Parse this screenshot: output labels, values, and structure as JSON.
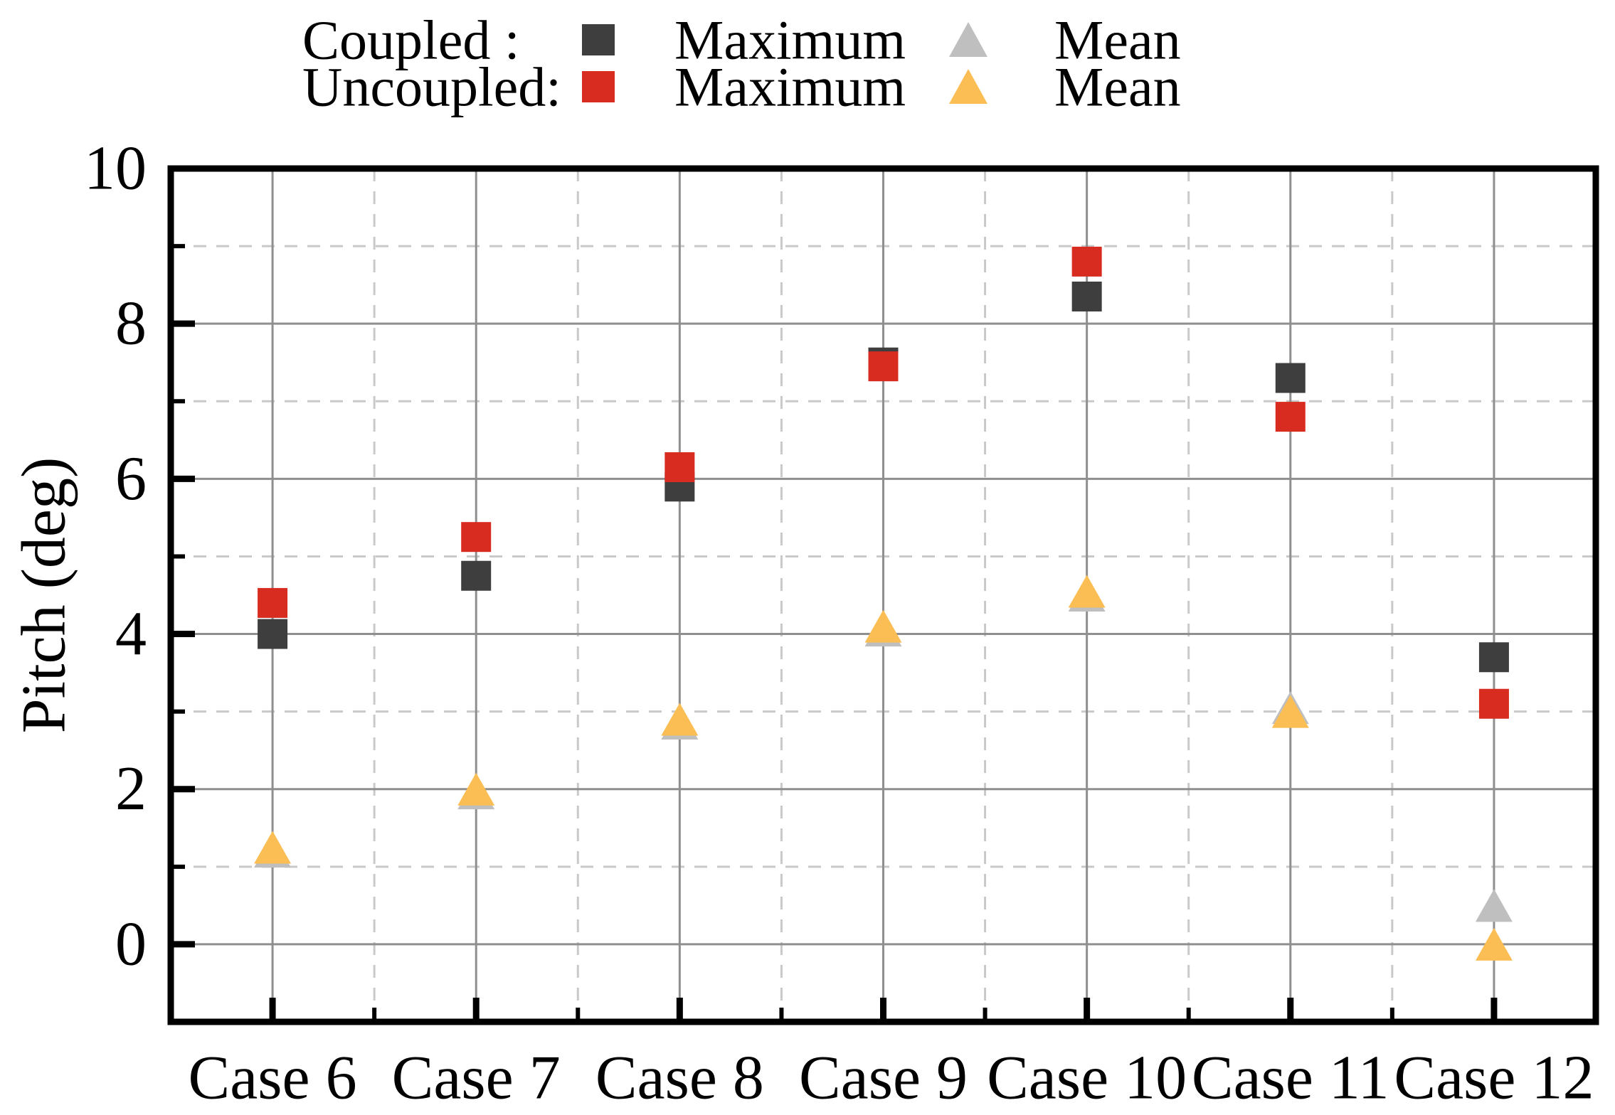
{
  "figure": {
    "background": "#ffffff",
    "text_color": "#000000"
  },
  "legend": {
    "rows": [
      {
        "series_label": "Coupled :",
        "entries": [
          {
            "marker": "square",
            "color": "#3E3E3E",
            "label": "Maximum"
          },
          {
            "marker": "triangle",
            "color": "#BFBFBF",
            "label": "Mean"
          }
        ]
      },
      {
        "series_label": "Uncoupled:",
        "entries": [
          {
            "marker": "square",
            "color": "#D92C21",
            "label": "Maximum"
          },
          {
            "marker": "triangle",
            "color": "#FBBE55",
            "label": "Mean"
          }
        ]
      }
    ]
  },
  "chart_data": {
    "type": "scatter",
    "categories": [
      "Case 6",
      "Case 7",
      "Case 8",
      "Case 9",
      "Case 10",
      "Case 11",
      "Case 12"
    ],
    "series": [
      {
        "name": "Coupled Maximum",
        "group": "Coupled",
        "stat": "Maximum",
        "marker": "square",
        "color": "#3E3E3E",
        "values": [
          4.0,
          4.75,
          5.9,
          7.5,
          8.35,
          7.3,
          3.7
        ]
      },
      {
        "name": "Coupled Mean",
        "group": "Coupled",
        "stat": "Mean",
        "marker": "triangle",
        "color": "#BFBFBF",
        "values": [
          1.2,
          1.95,
          2.85,
          4.05,
          4.5,
          3.05,
          0.5
        ]
      },
      {
        "name": "Uncoupled Maximum",
        "group": "Uncoupled",
        "stat": "Maximum",
        "marker": "square",
        "color": "#D92C21",
        "values": [
          4.4,
          5.25,
          6.15,
          7.45,
          8.8,
          6.8,
          3.1
        ]
      },
      {
        "name": "Uncoupled Mean",
        "group": "Uncoupled",
        "stat": "Mean",
        "marker": "triangle",
        "color": "#FBBE55",
        "values": [
          1.25,
          2.0,
          2.9,
          4.1,
          4.55,
          3.0,
          0.0
        ]
      }
    ],
    "xlabel": "",
    "ylabel": "Pitch (deg)",
    "ylim": [
      -1,
      10
    ],
    "yticks": [
      0,
      2,
      4,
      6,
      8,
      10
    ],
    "yticks_minor": [
      1,
      3,
      5,
      7,
      9
    ],
    "grid": {
      "major_color": "#8F8F8F",
      "minor_color": "#C9C9C9",
      "major_on": true,
      "minor_dashed": true
    },
    "legend_position": "top"
  }
}
